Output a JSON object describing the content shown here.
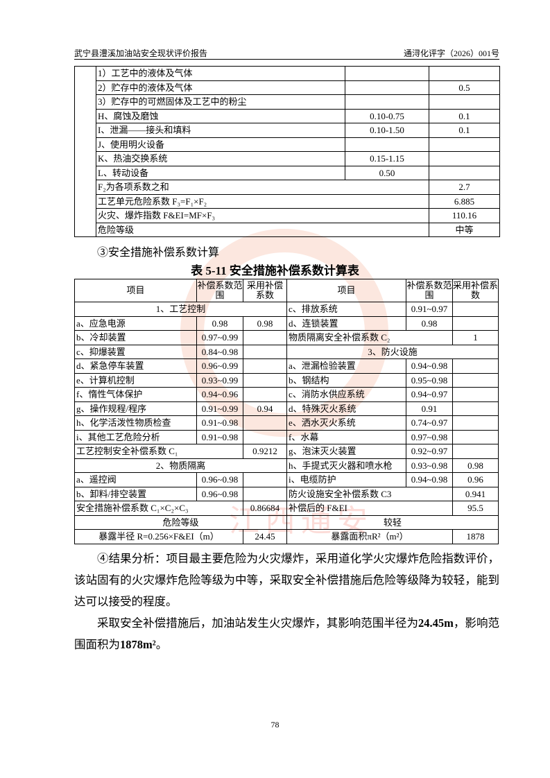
{
  "header": {
    "left": "武宁县澧溪加油站安全现状评价报告",
    "right": "通浔化评字（2026）001号"
  },
  "table_top": {
    "rows": [
      [
        "1）工艺中的液体及气体",
        null,
        null
      ],
      [
        "2）贮存中的液体及气体",
        null,
        "0.5"
      ],
      [
        "3）贮存中的可燃固体及工艺中的粉尘",
        null,
        null
      ],
      [
        "H、腐蚀及磨蚀",
        "0.10-0.75",
        "0.1"
      ],
      [
        "I、泄漏——接头和填料",
        "0.10-1.50",
        "0.1"
      ],
      [
        "J、使用明火设备",
        null,
        null
      ],
      [
        "K、热油交换系统",
        "0.15-1.15",
        null
      ],
      [
        "L、转动设备",
        "0.50",
        null
      ],
      [
        "F₂为各项系数之和",
        "2.7"
      ],
      [
        "工艺单元危险系数 F₃=F₁×F₂",
        "6.885"
      ],
      [
        "火灾、爆炸指数 F&EI=MF×F₃",
        "110.16"
      ],
      [
        "危险等级",
        "中等"
      ]
    ]
  },
  "section_heading": "③安全措施补偿系数计算",
  "table": {
    "caption": "表 5-11 安全措施补偿系数计算表",
    "header": [
      "项目",
      "补偿系数范围",
      "采用补偿系数",
      "项目",
      "补偿系数范围",
      "采用补偿系数"
    ],
    "rows": [
      [
        "1、工艺控制",
        "c、排放系统",
        "0.91~0.97",
        null
      ],
      [
        "a、应急电源",
        "0.98",
        "0.98",
        "d、连锁装置",
        "0.98",
        null
      ],
      [
        "b、冷却装置",
        "0.97~0.99",
        null,
        "物质隔离安全补偿系数 C₂",
        "1"
      ],
      [
        "c、抑爆装置",
        "0.84~0.98",
        null,
        "3、防火设施"
      ],
      [
        "d、紧急停车装置",
        "0.96~0.99",
        null,
        "a、泄漏检验装置",
        "0.94~0.98",
        null
      ],
      [
        "e、计算机控制",
        "0.93~0.99",
        null,
        "b、钢结构",
        "0.95~0.98",
        null
      ],
      [
        "f、惰性气体保护",
        "0.94~0.96",
        null,
        "c、消防水供应系统",
        "0.94~0.97",
        null
      ],
      [
        "g、操作规程/程序",
        "0.91~0.99",
        "0.94",
        "d、特殊灭火系统",
        "0.91",
        null
      ],
      [
        "h、化学活泼性物质检查",
        "0.91~0.98",
        null,
        "e、洒水灭火系统",
        "0.74~0.97",
        null
      ],
      [
        "i、其他工艺危险分析",
        "0.91~0.98",
        null,
        "f、水幕",
        "0.97~0.98",
        null
      ],
      [
        "工艺控制安全补偿系数 C₁",
        "0.9212",
        "g、泡沫灭火装置",
        "0.92~0.97",
        null
      ],
      [
        "2、物质隔离",
        "h、手提式灭火器和喷水枪",
        "0.93~0.98",
        "0.98"
      ],
      [
        "a、遥控阀",
        "0.96~0.98",
        null,
        "i、电缆防护",
        "0.94~0.98",
        "0.96"
      ],
      [
        "b、卸料/排空装置",
        "0.96~0.98",
        null,
        "防火设施安全补偿系数 C3",
        "0.941"
      ],
      [
        "安全措施补偿系数 C₁×C₂×C₃",
        "0.86684",
        "补偿后的 F&EI",
        "95.5"
      ],
      [
        "危险等级",
        "较轻"
      ],
      [
        "暴露半径 R=0.256×F&EI（m）",
        "24.45",
        "暴露面积πR²（m²）",
        "1878"
      ]
    ]
  },
  "result_analysis": "④结果分析：项目最主要危险为火灾爆炸，采用道化学火灾爆炸危险指数评价，该站固有的火灾爆炸危险等级为中等，采取安全补偿措施后危险等级降为较轻，能到达可以接受的程度。",
  "conclusion": {
    "parts": [
      "采取安全补偿措施后，加油站发生火灾爆炸，其影响范围半径为",
      "24.45m",
      "，影响范围面积为",
      "1878m²",
      "。"
    ]
  },
  "watermark": "江西通安",
  "page_number": "78"
}
